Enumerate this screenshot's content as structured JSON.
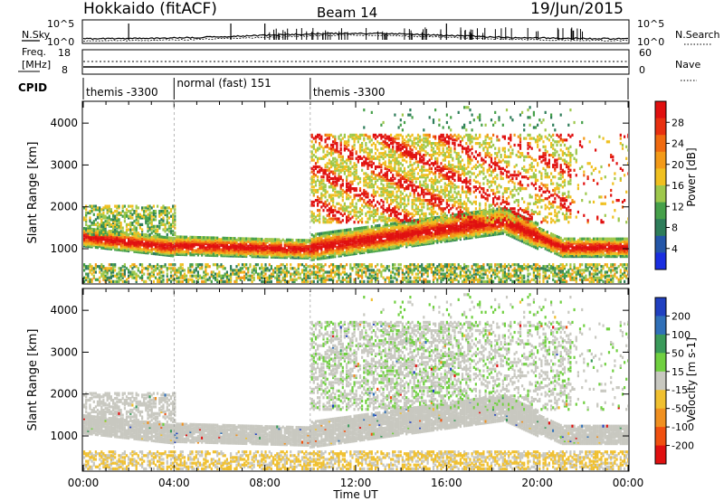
{
  "header": {
    "station": "Hokkaido (fitACF)",
    "beam": "Beam 14",
    "date": "19/Jun/2015"
  },
  "noise_panel": {
    "left_label": "N.Sky",
    "right_label": "N.Search",
    "left_ticks": [
      "10^5",
      "10^0"
    ],
    "right_ticks": [
      "10^5",
      "10^0"
    ]
  },
  "freq_panel": {
    "left_label_1": "Freq.",
    "left_label_2": "[MHz]",
    "left_ticks": [
      "18",
      "8"
    ],
    "right_label": "Nave",
    "right_ticks": [
      "60",
      "0"
    ]
  },
  "cpid": {
    "label": "CPID",
    "segments": [
      {
        "name": "themis -3300",
        "start_hr": 0,
        "end_hr": 4
      },
      {
        "name": "normal (fast) 151",
        "start_hr": 4,
        "end_hr": 10
      },
      {
        "name": "themis -3300",
        "start_hr": 10,
        "end_hr": 24
      }
    ]
  },
  "chart_data": [
    {
      "type": "heatmap",
      "title": "Power",
      "parameter": "Power",
      "ylabel": "Slant Range [km]",
      "xlabel": "Time UT",
      "ylim": [
        180,
        4500
      ],
      "yticks": [
        1000,
        2000,
        3000,
        4000
      ],
      "xlim_hr": [
        0,
        24
      ],
      "colorbar": {
        "label": "Power [dB]",
        "ticks": [
          4,
          8,
          12,
          16,
          20,
          24,
          28
        ],
        "range": [
          0,
          30
        ],
        "colors": [
          "#1a2ee0",
          "#2456a8",
          "#2e7d5a",
          "#46a04a",
          "#9ec84c",
          "#f0c020",
          "#f39a18",
          "#f06a10",
          "#e83010",
          "#e01010"
        ]
      }
    },
    {
      "type": "heatmap",
      "title": "Velocity",
      "parameter": "Velocity",
      "ylabel": "Slant Range [km]",
      "xlabel": "Time UT",
      "ylim": [
        180,
        4500
      ],
      "yticks": [
        1000,
        2000,
        3000,
        4000
      ],
      "xlim_hr": [
        0,
        24
      ],
      "xtick_labels": [
        "00:00",
        "04:00",
        "08:00",
        "12:00",
        "16:00",
        "20:00",
        "00:00"
      ],
      "colorbar": {
        "label": "Velocity [m s-1]",
        "ticks": [
          "200",
          "100",
          "50",
          "15",
          "-15",
          "-50",
          "-100",
          "-200"
        ],
        "colors": [
          "#2040c0",
          "#3070b8",
          "#3a9a5a",
          "#70d040",
          "#c8c8c0",
          "#f0c030",
          "#f09020",
          "#f05010",
          "#e01010"
        ]
      }
    }
  ]
}
